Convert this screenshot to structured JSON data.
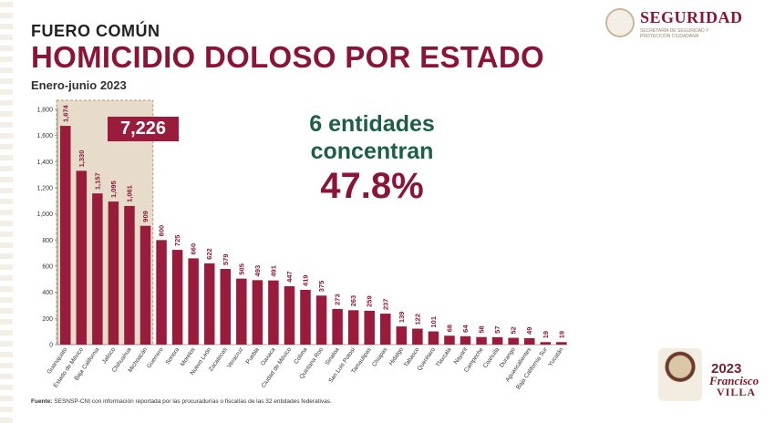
{
  "header": {
    "kicker": "FUERO COMÚN",
    "title": "HOMICIDIO DOLOSO POR ESTADO",
    "period": "Enero-junio 2023"
  },
  "brand": {
    "name": "SEGURIDAD",
    "subtitle": "SECRETARÍA DE SEGURIDAD Y PROTECCIÓN CIUDADANA",
    "seal_icon": "eagle-seal-icon"
  },
  "callout": {
    "group_total": "7,226",
    "line1": "6 entidades",
    "line2": "concentran",
    "percent": "47.8%"
  },
  "source": {
    "label": "Fuente:",
    "text": "SESNSP-CNI con información reportada por las procuradurías o fiscalías de las 32 entidades federativas."
  },
  "anniversary": {
    "year": "2023",
    "name1": "Francisco",
    "name2": "VILLA",
    "icon": "villa-portrait-icon"
  },
  "colors": {
    "bar": "#9a1c3d",
    "highlight_fill": "#e7dccb",
    "highlight_border": "#b79a6e",
    "title": "#8a1538",
    "accent_green": "#1c5e47"
  },
  "chart_data": {
    "type": "bar",
    "title": "HOMICIDIO DOLOSO POR ESTADO",
    "ylim": [
      0,
      1800
    ],
    "yticks": [
      0,
      200,
      400,
      600,
      800,
      1000,
      1200,
      1400,
      1600,
      1800
    ],
    "ytick_labels": [
      "0",
      "200",
      "400",
      "600",
      "800",
      "1,000",
      "1,200",
      "1,400",
      "1,600",
      "1,800"
    ],
    "grid": false,
    "highlighted_count": 6,
    "categories": [
      "Guanajuato",
      "Estado de México",
      "Baja California",
      "Jalisco",
      "Chihuahua",
      "Michoacán",
      "Guerrero",
      "Sonora",
      "Morelos",
      "Nuevo León",
      "Zacatecas",
      "Veracruz",
      "Puebla",
      "Oaxaca",
      "Ciudad de México",
      "Colima",
      "Quintana Roo",
      "Sinaloa",
      "San Luis Potosí",
      "Tamaulipas",
      "Chiapas",
      "Hidalgo",
      "Tabasco",
      "Querétaro",
      "Tlaxcala",
      "Nayarit",
      "Campeche",
      "Coahuila",
      "Durango",
      "Aguascalientes",
      "Baja California Sur",
      "Yucatán"
    ],
    "values": [
      1674,
      1330,
      1157,
      1095,
      1061,
      909,
      800,
      725,
      660,
      622,
      579,
      505,
      493,
      491,
      447,
      419,
      375,
      273,
      263,
      259,
      237,
      139,
      122,
      101,
      68,
      64,
      58,
      57,
      52,
      49,
      19,
      19
    ],
    "value_labels": [
      "1,674",
      "1,330",
      "1,157",
      "1,095",
      "1,061",
      "909",
      "800",
      "725",
      "660",
      "622",
      "579",
      "505",
      "493",
      "491",
      "447",
      "419",
      "375",
      "273",
      "263",
      "259",
      "237",
      "139",
      "122",
      "101",
      "68",
      "64",
      "58",
      "57",
      "52",
      "49",
      "19",
      "19"
    ]
  }
}
